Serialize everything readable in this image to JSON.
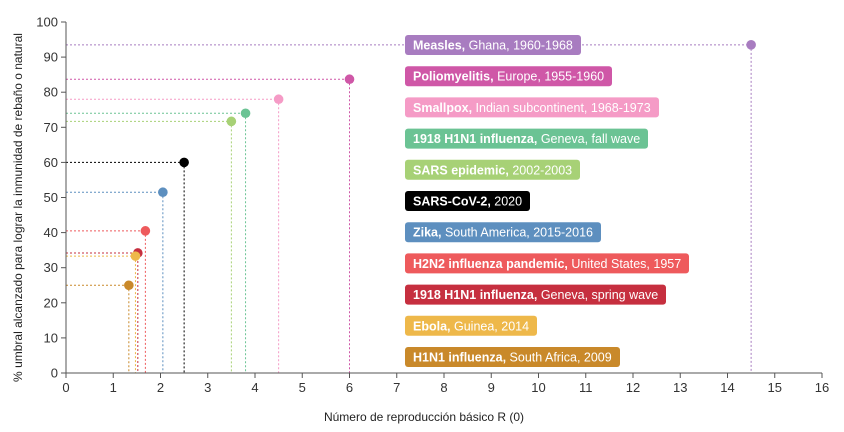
{
  "chart_data": {
    "type": "scatter",
    "title": "",
    "xlabel": "Número de reproducción básico R (0)",
    "ylabel": "% umbral alcanzado para lograr la inmunidad de rebaño o natural",
    "xlim": [
      0,
      16
    ],
    "ylim": [
      0,
      100
    ],
    "xticks": [
      "0",
      "1",
      "2",
      "3",
      "4",
      "5",
      "6",
      "7",
      "8",
      "9",
      "10",
      "11",
      "12",
      "13",
      "14",
      "15",
      "16"
    ],
    "yticks": [
      "0",
      "10",
      "20",
      "30",
      "40",
      "50",
      "60",
      "70",
      "80",
      "90",
      "100"
    ],
    "grid": false,
    "legend_placement": "inside-center (colored labels)",
    "series": [
      {
        "name": "Measles",
        "detail": "Ghana, 1960-1968",
        "x": 14.5,
        "y": 93.5,
        "color": "#a87cc0"
      },
      {
        "name": "Poliomyelitis",
        "detail": "Europe, 1955-1960",
        "x": 6.0,
        "y": 83.7,
        "color": "#cf57a7"
      },
      {
        "name": "Smallpox",
        "detail": "Indian subcontinent, 1968-1973",
        "x": 4.5,
        "y": 78.0,
        "color": "#f59bc6"
      },
      {
        "name": "1918 H1N1 influenza",
        "detail": "Geneva, fall wave",
        "x": 3.8,
        "y": 74.0,
        "color": "#6bc394"
      },
      {
        "name": "SARS epidemic",
        "detail": "2002-2003",
        "x": 3.5,
        "y": 71.7,
        "color": "#a7d176"
      },
      {
        "name": "SARS-CoV-2",
        "detail": "2020",
        "x": 2.5,
        "y": 60.0,
        "color": "#000000"
      },
      {
        "name": "Zika",
        "detail": "South America, 2015-2016",
        "x": 2.05,
        "y": 51.5,
        "color": "#5d8fbf"
      },
      {
        "name": "H2N2 influenza pandemic",
        "detail": "United States, 1957",
        "x": 1.68,
        "y": 40.5,
        "color": "#ee5a5c"
      },
      {
        "name": "1918 H1N1 influenza",
        "detail": "Geneva, spring wave",
        "x": 1.52,
        "y": 34.2,
        "color": "#c62f3f"
      },
      {
        "name": "Ebola",
        "detail": "Guinea, 2014",
        "x": 1.47,
        "y": 33.3,
        "color": "#eeb84a"
      },
      {
        "name": "H1N1 influenza",
        "detail": "South Africa, 2009",
        "x": 1.33,
        "y": 25.0,
        "color": "#c9892a"
      }
    ]
  },
  "colors": {
    "axis": "#555555",
    "tick_text": "#333333",
    "badge_text": "#ffffff"
  }
}
